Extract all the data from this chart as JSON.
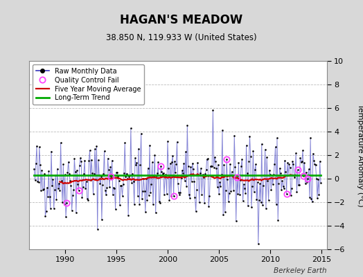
{
  "title": "HAGAN'S MEADOW",
  "subtitle": "38.850 N, 119.933 W (United States)",
  "ylabel": "Temperature Anomaly (°C)",
  "watermark": "Berkeley Earth",
  "xlim": [
    1986.5,
    2015.5
  ],
  "ylim": [
    -6,
    10
  ],
  "yticks": [
    -6,
    -4,
    -2,
    0,
    2,
    4,
    6,
    8,
    10
  ],
  "xticks": [
    1990,
    1995,
    2000,
    2005,
    2010,
    2015
  ],
  "bg_color": "#d8d8d8",
  "plot_bg_color": "#ffffff",
  "line_color": "#3333bb",
  "line_alpha": 0.6,
  "dot_color": "#000000",
  "ma_color": "#cc0000",
  "trend_color": "#00aa00",
  "qc_color": "#ff44ff",
  "trend_value": 0.3,
  "seed": 42,
  "n_months": 336,
  "start_year": 1987.0
}
